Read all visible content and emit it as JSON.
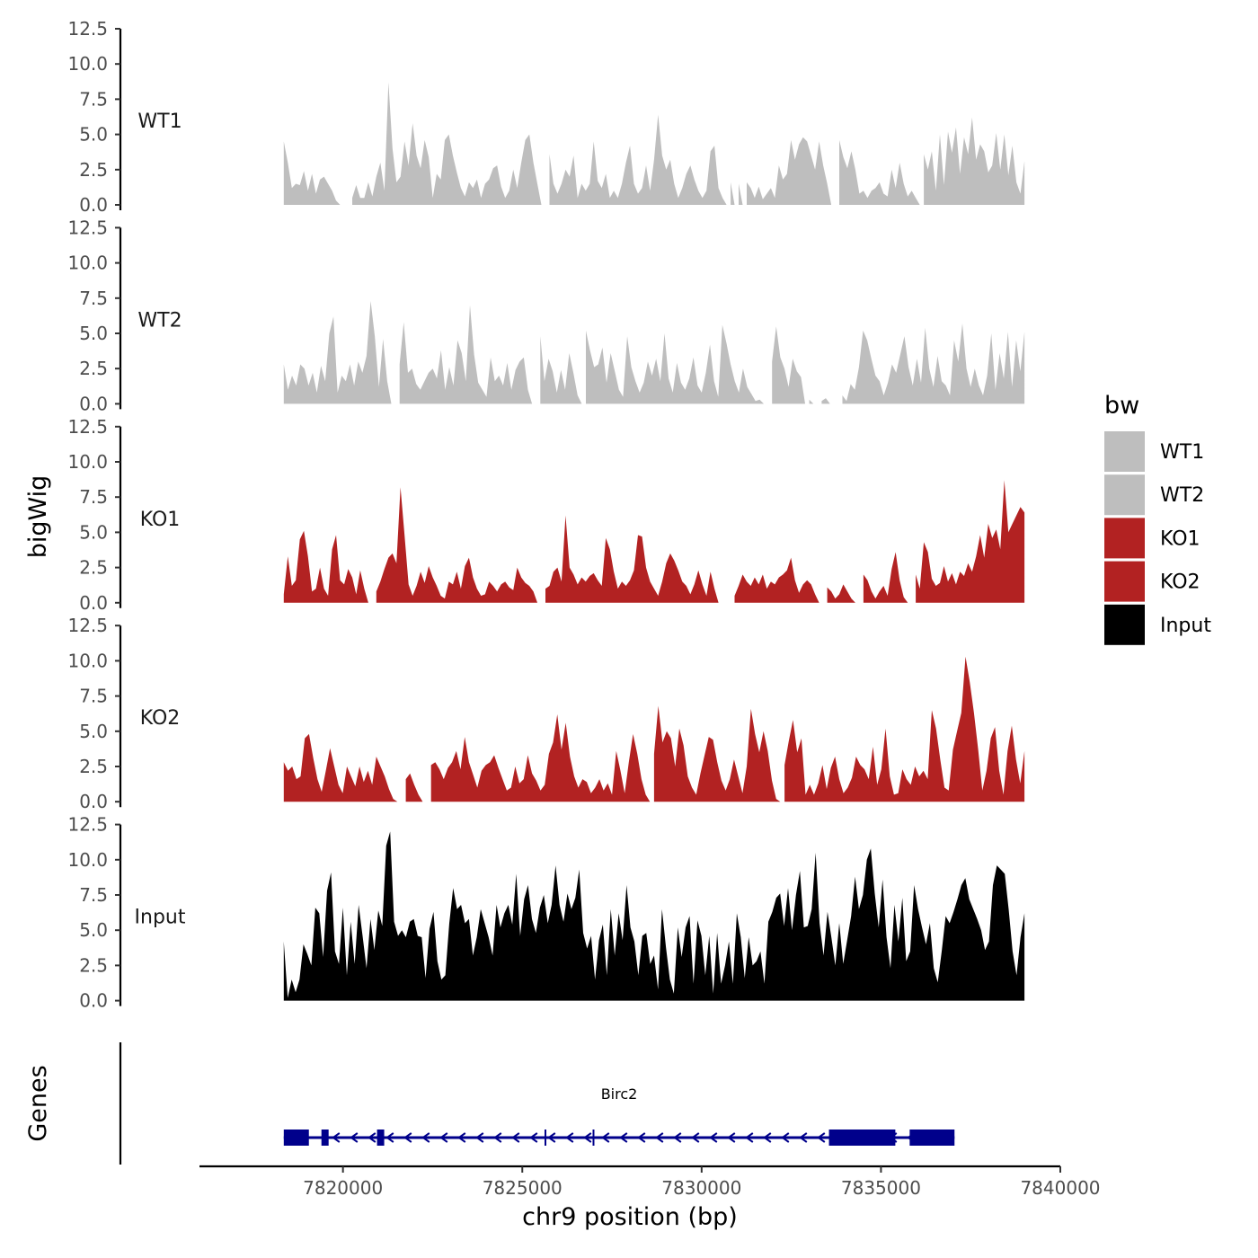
{
  "chart_data": {
    "type": "area",
    "title": "",
    "ylabel": "bigWig",
    "xlabel": "chr9 position (bp)",
    "xlim": [
      7816000,
      7840000
    ],
    "signal_range": [
      7818350,
      7839000
    ],
    "ylim": [
      0,
      12.5
    ],
    "ytick_labels": [
      "0.0",
      "2.5",
      "5.0",
      "7.5",
      "10.0",
      "12.5"
    ],
    "yticks": [
      0,
      2.5,
      5,
      7.5,
      10,
      12.5
    ],
    "xtick_labels": [
      "7820000",
      "7825000",
      "7830000",
      "7835000",
      "7840000"
    ],
    "xticks": [
      7820000,
      7825000,
      7830000,
      7835000,
      7840000
    ],
    "legend": {
      "title": "bw",
      "position": "right",
      "entries": [
        {
          "label": "WT1",
          "color": "#BEBEBE"
        },
        {
          "label": "WT2",
          "color": "#BEBEBE"
        },
        {
          "label": "KO1",
          "color": "#B22222"
        },
        {
          "label": "KO2",
          "color": "#B22222"
        },
        {
          "label": "Input",
          "color": "#000000"
        }
      ]
    },
    "series": [
      {
        "name": "WT1",
        "color": "#BEBEBE",
        "values": [
          4.5,
          3,
          1.2,
          1.5,
          1.4,
          2.4,
          1,
          2.2,
          0.8,
          1.8,
          2,
          1.5,
          1,
          0.3,
          0,
          0,
          0,
          0.5,
          1.4,
          0.5,
          0.5,
          1.6,
          0.6,
          2,
          3,
          1,
          8.7,
          4,
          1.6,
          2,
          4.5,
          2.8,
          5.8,
          3.5,
          2.6,
          4.6,
          3.4,
          0.5,
          2.2,
          1.8,
          4.6,
          5,
          3.5,
          2.3,
          1.2,
          0.6,
          1.6,
          1.2,
          1.8,
          0.5,
          1.5,
          1.8,
          2.6,
          2.8,
          1.3,
          0.5,
          1,
          2.5,
          1.2,
          3,
          4.6,
          5,
          3,
          1.5,
          0,
          0,
          3.6,
          1.5,
          0.8,
          1.5,
          2.5,
          2,
          3.5,
          0.5,
          1.5,
          1,
          1.5,
          4.5,
          1.7,
          1.2,
          2.2,
          0.5,
          1,
          0.5,
          1.5,
          3,
          4.2,
          1.5,
          0.8,
          1.2,
          2.8,
          1,
          3.2,
          6.4,
          3.5,
          2.5,
          3.2,
          1.5,
          0.5,
          1.2,
          2.2,
          2.8,
          1.8,
          1,
          0.5,
          1,
          3.8,
          4.2,
          1.2,
          0.5,
          0,
          1.6,
          0,
          1.5,
          0,
          1.6,
          1.2,
          0.5,
          1.3,
          0.4,
          0.8,
          1.2,
          0.5,
          2.8,
          1.8,
          2.2,
          4.6,
          3.2,
          4.3,
          4.8,
          4.5,
          3.5,
          2.5,
          4.5,
          2.8,
          1.5,
          0,
          0,
          4.6,
          3.4,
          2.6,
          3.8,
          2.5,
          0.8,
          1,
          0.5,
          1,
          1.2,
          1.6,
          0.8,
          0.6,
          2.5,
          1.2,
          3,
          1.5,
          0.6,
          1,
          0.5,
          0,
          3.6,
          2.5,
          3.8,
          1,
          5,
          1.4,
          5.2,
          3.7,
          5.5,
          2.2,
          4.8,
          3.6,
          6.2,
          3.2,
          4.3,
          3.8,
          2.3,
          2.8,
          5.1,
          2.5,
          5,
          2.1,
          4.2,
          1.6,
          0.8,
          3.1
        ]
      },
      {
        "name": "WT2",
        "color": "#BEBEBE",
        "values": [
          2.8,
          1,
          2,
          1.3,
          2.8,
          2.5,
          1.3,
          2.2,
          0.8,
          2.7,
          1.6,
          5,
          6.2,
          0.8,
          2,
          1.6,
          2.8,
          1.3,
          3,
          2.2,
          3.4,
          7.3,
          4.8,
          1.2,
          4.6,
          1.6,
          0,
          0,
          2.8,
          5.8,
          2.2,
          2.5,
          1.4,
          1,
          1.6,
          2.2,
          2.5,
          1.8,
          3.8,
          1,
          2.6,
          1.3,
          4.5,
          3.6,
          1.6,
          7,
          3.5,
          1.5,
          1,
          0.5,
          3.3,
          1.6,
          2,
          1.3,
          2.9,
          1,
          2.4,
          3,
          3.3,
          1,
          0,
          0,
          4.8,
          1.6,
          3.2,
          2.3,
          0.8,
          2.4,
          1,
          3.6,
          2.2,
          0.6,
          0,
          5.2,
          3.8,
          2.6,
          2.8,
          4,
          1.5,
          3.6,
          2.3,
          1,
          0.5,
          4.8,
          2.6,
          1.6,
          0.8,
          1.5,
          3,
          2,
          3.2,
          1.6,
          5,
          1.8,
          0.8,
          2.9,
          1.5,
          1,
          1.8,
          3.3,
          1.3,
          0.8,
          2.2,
          4.2,
          1.6,
          0.5,
          5.6,
          4.3,
          2.8,
          1.6,
          0.8,
          2.5,
          1.2,
          0.7,
          0.2,
          0.3,
          0,
          0,
          3,
          5.5,
          3.3,
          2.5,
          1.2,
          3.2,
          2.3,
          1.9,
          0,
          0.3,
          0,
          0,
          0.2,
          0.4,
          0,
          0,
          0,
          0.6,
          0.2,
          1.4,
          1,
          2.6,
          5.2,
          4.5,
          3.2,
          2,
          1.6,
          0.6,
          1.5,
          2.8,
          2.2,
          3.5,
          4.8,
          2.6,
          1.3,
          3.2,
          1.5,
          5.4,
          2.5,
          1.2,
          3.4,
          1.6,
          1.3,
          0.6,
          4.5,
          3,
          5.7,
          2.5,
          1.2,
          2.5,
          1.3,
          0.6,
          2,
          5,
          1,
          3.6,
          1.8,
          5.1,
          1.2,
          4.5,
          2.3,
          5.1
        ]
      },
      {
        "name": "KO1",
        "color": "#B22222",
        "values": [
          0.6,
          3.3,
          1.2,
          1.6,
          4.5,
          5.1,
          3.3,
          0.8,
          1,
          2.5,
          1,
          0.5,
          3.8,
          4.8,
          1.6,
          1.3,
          2.4,
          1.8,
          0.6,
          2.3,
          1,
          0,
          0,
          0.8,
          1.5,
          2.4,
          3.2,
          3.5,
          2.8,
          8.2,
          4.8,
          1.3,
          0.5,
          1.2,
          2.2,
          1.4,
          2.6,
          1.8,
          1.2,
          0.5,
          0.3,
          1.5,
          1.3,
          2.2,
          1,
          2.6,
          3.2,
          1.8,
          1,
          0.5,
          0.6,
          1.5,
          1.2,
          0.8,
          1.3,
          1.5,
          1.1,
          0.9,
          2.5,
          1.8,
          1.4,
          1.2,
          0.8,
          0,
          0,
          1,
          1.2,
          2.2,
          2.5,
          1.5,
          6.2,
          2.5,
          2,
          1.3,
          1.8,
          1.5,
          1.9,
          2.1,
          1.6,
          1.2,
          4.6,
          3.8,
          2.2,
          1,
          1.5,
          1.2,
          1.6,
          2.3,
          4.8,
          4.7,
          2.5,
          1.5,
          1,
          0.5,
          1.5,
          2.8,
          3.5,
          3,
          2.3,
          1.5,
          1.2,
          0.6,
          1.3,
          2.3,
          1.3,
          0.5,
          2.2,
          1,
          0,
          0,
          0,
          0,
          0.5,
          1.2,
          2,
          1.5,
          1.2,
          1.8,
          1.3,
          2,
          1,
          1.5,
          1.3,
          1.8,
          2,
          2.3,
          3.2,
          1.6,
          0.7,
          1.3,
          1.6,
          1.3,
          0.6,
          0,
          0,
          1.1,
          0.8,
          0.3,
          0.6,
          1.3,
          0.8,
          0.3,
          0,
          0,
          2,
          1.6,
          0.8,
          0.3,
          0.8,
          1.2,
          0.5,
          2.4,
          3.6,
          1.6,
          0.4,
          0,
          0,
          2,
          1,
          4.3,
          3.6,
          1.7,
          1.2,
          1.4,
          2.6,
          1.5,
          2.1,
          1.3,
          2.2,
          1.9,
          2.8,
          2.2,
          3.3,
          4.8,
          3.2,
          5.6,
          4.6,
          5.2,
          3.8,
          8.7,
          5,
          5.6,
          6.2,
          6.8,
          6.4
        ]
      },
      {
        "name": "KO2",
        "color": "#B22222",
        "values": [
          2.8,
          2.2,
          2.5,
          1.6,
          1.8,
          4.5,
          4.8,
          3.1,
          1.6,
          0.7,
          2.2,
          3.8,
          2.5,
          1.2,
          0.6,
          2.5,
          1.8,
          1.1,
          2.5,
          1.4,
          2.2,
          1.2,
          3.2,
          2.5,
          1.8,
          0.9,
          0.2,
          0,
          0,
          1.6,
          2,
          1.2,
          0.5,
          0,
          0,
          2.6,
          2.8,
          2.3,
          1.6,
          2.4,
          2.8,
          3.6,
          2.3,
          4.6,
          2.8,
          1.9,
          1,
          2.2,
          2.6,
          2.8,
          3.3,
          2.4,
          1.6,
          0.8,
          1,
          2.5,
          1.3,
          1.6,
          3.3,
          2,
          1.5,
          0.8,
          1.2,
          3.4,
          4.2,
          6.2,
          3.7,
          5.6,
          3.2,
          1.8,
          1,
          1.6,
          1.4,
          0.6,
          1,
          1.6,
          0.8,
          1.3,
          0.5,
          3.6,
          2.2,
          0.6,
          2.8,
          4.8,
          3.4,
          1.6,
          0.5,
          0,
          3.4,
          6.8,
          4.2,
          5,
          4.5,
          2.5,
          5.2,
          4,
          1.8,
          1,
          0.5,
          2,
          3.3,
          4.6,
          4.4,
          2.8,
          1.5,
          0.8,
          1.6,
          3,
          1.8,
          0.6,
          2.5,
          6.6,
          4.8,
          3.5,
          5,
          3.6,
          1.5,
          0.2,
          0,
          2.6,
          4.3,
          5.8,
          3.5,
          4.5,
          0.5,
          1.2,
          0.5,
          1.3,
          2.6,
          0.9,
          2.4,
          3.2,
          1.6,
          0.6,
          1,
          1.7,
          3.2,
          2.6,
          2.3,
          1.6,
          3.9,
          1.2,
          2.3,
          5.2,
          1.8,
          0.5,
          0.6,
          2.3,
          1.6,
          1.2,
          2.5,
          1.8,
          2.2,
          1.6,
          6.5,
          5.2,
          3,
          1,
          0.8,
          3.7,
          5,
          6.3,
          10.3,
          8.5,
          6.3,
          3.7,
          0.8,
          2.2,
          4.5,
          5.3,
          2.2,
          0.5,
          3.6,
          5.4,
          3,
          1.3,
          3.6
        ]
      },
      {
        "name": "Input",
        "color": "#000000",
        "values": [
          4.2,
          0.2,
          1.5,
          0.6,
          1.5,
          4,
          3.3,
          2.5,
          6.6,
          6.2,
          3.1,
          7.8,
          9.1,
          3.5,
          2.6,
          6.6,
          1.8,
          5.6,
          2.6,
          6.8,
          4.6,
          2.3,
          5.8,
          3.6,
          6.4,
          5.3,
          11,
          12,
          5.6,
          4.6,
          5,
          4.5,
          5.6,
          5.8,
          4.6,
          4.5,
          1.6,
          5.1,
          6.3,
          2.8,
          1.5,
          1.8,
          5.5,
          8,
          6.5,
          6.8,
          5.5,
          5.8,
          3.2,
          4.5,
          6.5,
          5.5,
          4.5,
          3.2,
          6.8,
          5.2,
          6.2,
          6.8,
          5.4,
          9,
          4.6,
          7.2,
          8.2,
          5.8,
          4.8,
          6.6,
          7.5,
          5.5,
          6.8,
          9.6,
          6.8,
          5.6,
          7.6,
          6.5,
          7.3,
          9.3,
          4.8,
          3.7,
          4.6,
          1.5,
          4.3,
          5.4,
          1.8,
          6.5,
          3.2,
          6.2,
          4.3,
          8.2,
          5.2,
          4.2,
          1.8,
          4.6,
          4.8,
          2.6,
          3.2,
          0.8,
          6.5,
          3.8,
          1.5,
          0.5,
          5.2,
          3.1,
          5.2,
          6,
          1.2,
          5.7,
          4.6,
          1.8,
          4.6,
          0.5,
          4.8,
          1.2,
          2.5,
          4.2,
          1.2,
          6.2,
          4.5,
          1.6,
          4.5,
          2.5,
          2.8,
          3.5,
          1.2,
          5.6,
          6.3,
          7.3,
          7.6,
          5.3,
          8,
          5,
          7.5,
          9.2,
          5.2,
          5.3,
          6.5,
          10.5,
          5.5,
          3.2,
          6.3,
          4.5,
          2.5,
          5.5,
          2.6,
          4.3,
          6,
          8.8,
          6.5,
          7.5,
          10,
          10.8,
          7.6,
          5.2,
          8.6,
          4.5,
          2.3,
          6.8,
          4.2,
          7.3,
          2.8,
          3.5,
          8.2,
          6.5,
          5.2,
          4,
          5.5,
          2.3,
          1.3,
          3.5,
          6,
          5.5,
          6.3,
          7.2,
          8.2,
          8.7,
          7.2,
          6.5,
          5.8,
          5,
          3.6,
          4.2,
          8.2,
          9.6,
          9.3,
          9,
          6.5,
          3.5,
          1.8,
          4.5,
          6.2
        ]
      }
    ],
    "gene_track": {
      "ylabel": "Genes",
      "gene": "Birc2",
      "color": "#00008B",
      "strand": "-",
      "start": 7818350,
      "end": 7837050,
      "exons": [
        [
          7818350,
          7819050
        ],
        [
          7819400,
          7819600
        ],
        [
          7820950,
          7821150
        ],
        [
          7825620,
          7825660
        ],
        [
          7826960,
          7827000
        ],
        [
          7833550,
          7835400
        ],
        [
          7835800,
          7837050
        ]
      ]
    }
  }
}
